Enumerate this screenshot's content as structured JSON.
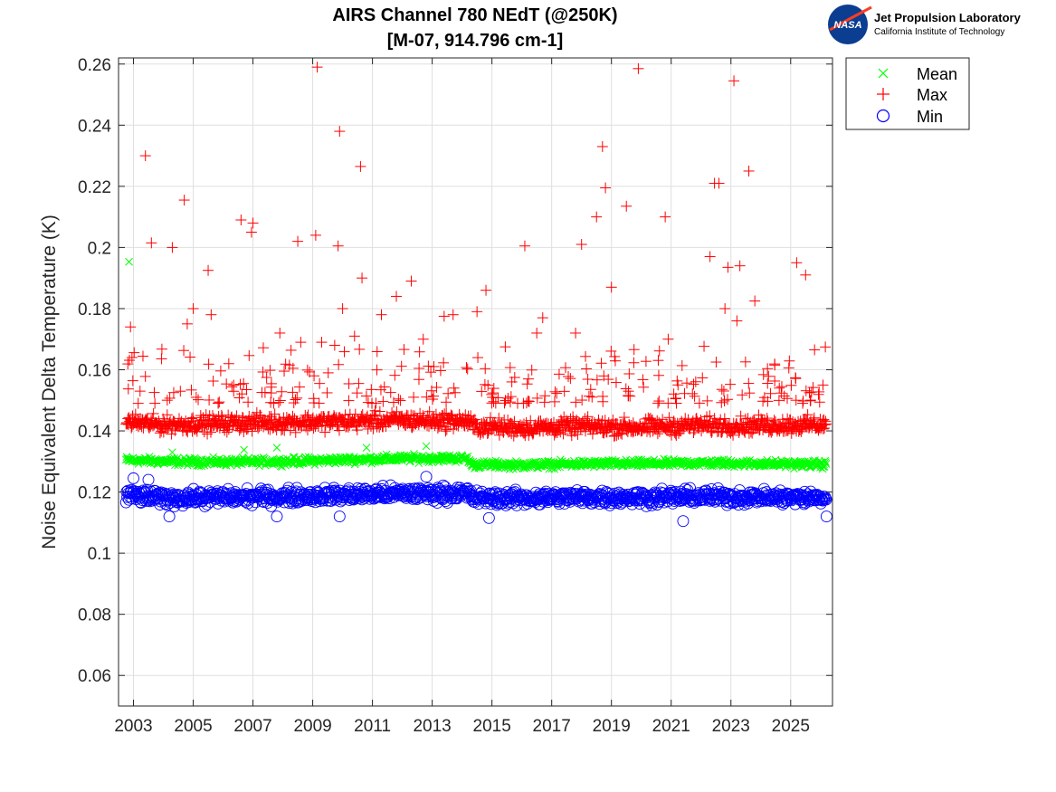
{
  "chart_data": {
    "type": "scatter",
    "title": "AIRS Channel 780 NEdT (@250K)",
    "subtitle": "[M-07, 914.796 cm-1]",
    "xlabel": "",
    "ylabel": "Noise Equivalent Delta Temperature (K)",
    "xlim": [
      2002.5,
      2026.4
    ],
    "ylim": [
      0.05,
      0.262
    ],
    "x_ticks": [
      "2003",
      "2005",
      "2007",
      "2009",
      "2011",
      "2013",
      "2015",
      "2017",
      "2019",
      "2021",
      "2023",
      "2025"
    ],
    "y_ticks": [
      "0.06",
      "0.08",
      "0.1",
      "0.12",
      "0.14",
      "0.16",
      "0.18",
      "0.2",
      "0.22",
      "0.24",
      "0.26"
    ],
    "grid": true,
    "legend_position": "outside-top-right",
    "series": [
      {
        "name": "Mean",
        "marker": "x",
        "color": "#00ff00",
        "baseline": [
          [
            2002.75,
            0.1305
          ],
          [
            2004.0,
            0.13
          ],
          [
            2006.0,
            0.1298
          ],
          [
            2008.0,
            0.13
          ],
          [
            2010.0,
            0.1305
          ],
          [
            2012.0,
            0.131
          ],
          [
            2014.2,
            0.131
          ],
          [
            2014.3,
            0.129
          ],
          [
            2016.0,
            0.1288
          ],
          [
            2018.0,
            0.1292
          ],
          [
            2020.0,
            0.1293
          ],
          [
            2022.0,
            0.1295
          ],
          [
            2024.0,
            0.1293
          ],
          [
            2026.2,
            0.129
          ]
        ],
        "spread": 0.0018,
        "outliers": [
          [
            2002.85,
            0.1953
          ],
          [
            2004.3,
            0.133
          ],
          [
            2006.7,
            0.1338
          ],
          [
            2007.8,
            0.1345
          ],
          [
            2010.8,
            0.1345
          ],
          [
            2012.8,
            0.135
          ]
        ]
      },
      {
        "name": "Max",
        "marker": "+",
        "color": "#ff0000",
        "baseline": [
          [
            2002.75,
            0.143
          ],
          [
            2004.0,
            0.142
          ],
          [
            2006.0,
            0.1425
          ],
          [
            2008.0,
            0.1428
          ],
          [
            2010.0,
            0.143
          ],
          [
            2012.0,
            0.1435
          ],
          [
            2014.2,
            0.1432
          ],
          [
            2014.4,
            0.1415
          ],
          [
            2016.0,
            0.141
          ],
          [
            2018.0,
            0.1415
          ],
          [
            2020.0,
            0.1412
          ],
          [
            2022.0,
            0.1418
          ],
          [
            2024.0,
            0.1418
          ],
          [
            2026.2,
            0.142
          ]
        ],
        "spread": 0.004,
        "outliers": [
          [
            2002.9,
            0.174
          ],
          [
            2002.95,
            0.164
          ],
          [
            2003.4,
            0.23
          ],
          [
            2003.6,
            0.2015
          ],
          [
            2004.3,
            0.2
          ],
          [
            2004.7,
            0.2155
          ],
          [
            2005.5,
            0.1925
          ],
          [
            2006.6,
            0.209
          ],
          [
            2007.0,
            0.208
          ],
          [
            2006.95,
            0.205
          ],
          [
            2008.5,
            0.202
          ],
          [
            2009.1,
            0.204
          ],
          [
            2009.15,
            0.259
          ],
          [
            2009.9,
            0.238
          ],
          [
            2009.85,
            0.2005
          ],
          [
            2010.6,
            0.2265
          ],
          [
            2010.65,
            0.19
          ],
          [
            2012.3,
            0.189
          ],
          [
            2013.7,
            0.178
          ],
          [
            2014.8,
            0.186
          ],
          [
            2016.1,
            0.2005
          ],
          [
            2016.7,
            0.177
          ],
          [
            2018.0,
            0.201
          ],
          [
            2018.5,
            0.21
          ],
          [
            2018.7,
            0.233
          ],
          [
            2018.8,
            0.2195
          ],
          [
            2019.5,
            0.2135
          ],
          [
            2019.9,
            0.2585
          ],
          [
            2020.8,
            0.21
          ],
          [
            2022.3,
            0.197
          ],
          [
            2022.45,
            0.221
          ],
          [
            2022.6,
            0.221
          ],
          [
            2022.9,
            0.1935
          ],
          [
            2023.1,
            0.2545
          ],
          [
            2023.3,
            0.194
          ],
          [
            2023.6,
            0.225
          ],
          [
            2023.8,
            0.1825
          ],
          [
            2025.2,
            0.195
          ],
          [
            2025.5,
            0.191
          ],
          [
            2025.8,
            0.1665
          ],
          [
            2004.8,
            0.175
          ],
          [
            2005.0,
            0.18
          ],
          [
            2005.6,
            0.178
          ],
          [
            2007.9,
            0.172
          ],
          [
            2008.6,
            0.169
          ],
          [
            2009.3,
            0.169
          ],
          [
            2010.0,
            0.18
          ],
          [
            2010.4,
            0.171
          ],
          [
            2011.3,
            0.178
          ],
          [
            2011.8,
            0.184
          ],
          [
            2012.7,
            0.17
          ],
          [
            2013.4,
            0.1775
          ],
          [
            2014.5,
            0.179
          ],
          [
            2016.5,
            0.172
          ],
          [
            2017.8,
            0.172
          ],
          [
            2019.0,
            0.187
          ],
          [
            2020.9,
            0.17
          ],
          [
            2022.8,
            0.18
          ],
          [
            2023.2,
            0.176
          ]
        ],
        "scatter_count": 260,
        "scatter_range": [
          0.149,
          0.168
        ]
      },
      {
        "name": "Min",
        "marker": "o",
        "color": "#0000ff",
        "baseline": [
          [
            2002.75,
            0.119
          ],
          [
            2004.0,
            0.118
          ],
          [
            2006.0,
            0.1183
          ],
          [
            2008.0,
            0.1185
          ],
          [
            2010.0,
            0.119
          ],
          [
            2012.0,
            0.1195
          ],
          [
            2014.2,
            0.1195
          ],
          [
            2014.4,
            0.118
          ],
          [
            2016.0,
            0.118
          ],
          [
            2018.0,
            0.1183
          ],
          [
            2020.0,
            0.1182
          ],
          [
            2022.0,
            0.1185
          ],
          [
            2024.0,
            0.1183
          ],
          [
            2026.2,
            0.118
          ]
        ],
        "spread": 0.0035,
        "outliers": [
          [
            2003.0,
            0.1245
          ],
          [
            2003.5,
            0.124
          ],
          [
            2004.2,
            0.112
          ],
          [
            2007.8,
            0.112
          ],
          [
            2009.9,
            0.112
          ],
          [
            2012.8,
            0.125
          ],
          [
            2014.9,
            0.1115
          ],
          [
            2021.4,
            0.1105
          ],
          [
            2026.2,
            0.112
          ]
        ]
      }
    ]
  },
  "legend": {
    "mean_label": "Mean",
    "max_label": "Max",
    "min_label": "Min"
  },
  "logo": {
    "badge_text": "NASA",
    "title": "Jet Propulsion Laboratory",
    "subtitle": "California Institute of Technology"
  }
}
